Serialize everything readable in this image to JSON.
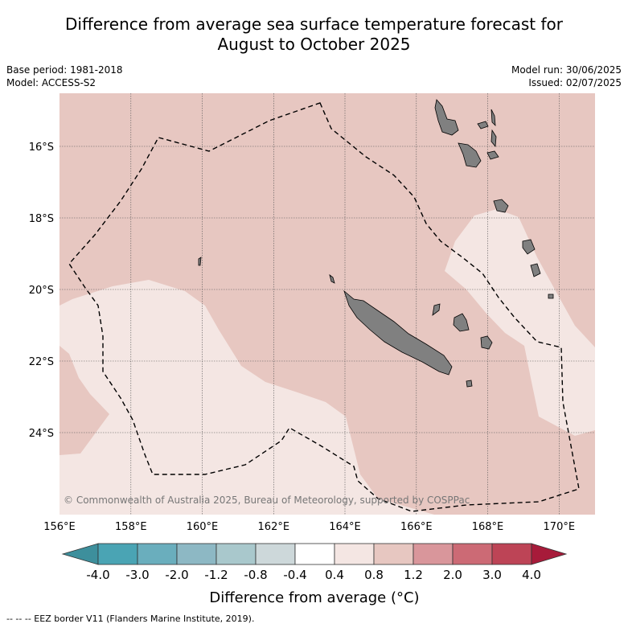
{
  "header": {
    "title_line1": "Difference from average sea surface temperature forecast for",
    "title_line2": "August to October 2025",
    "base_period": "Base period: 1981-2018",
    "model": "Model: ACCESS-S2",
    "model_run": "Model run: 30/06/2025",
    "issued": "Issued: 02/07/2025"
  },
  "map": {
    "lon_labels": [
      "156°E",
      "158°E",
      "160°E",
      "162°E",
      "164°E",
      "166°E",
      "168°E",
      "170°E"
    ],
    "lat_labels": [
      "16°S",
      "18°S",
      "20°S",
      "22°S",
      "24°S"
    ],
    "copyright": "© Commonwealth of Australia 2025, Bureau of Meteorology, supported by COSPPac",
    "colors": {
      "ocean_warm": "#e7c7c1",
      "ocean_light": "#f4e6e3",
      "land": "#808080",
      "gridline": "#555555"
    }
  },
  "colorbar": {
    "tick_labels": [
      "-4.0",
      "-3.0",
      "-2.0",
      "-1.2",
      "-0.8",
      "-0.4",
      "0.4",
      "0.8",
      "1.2",
      "2.0",
      "3.0",
      "4.0"
    ],
    "bin_colors": [
      "#3d8f9c",
      "#4aa4b4",
      "#6aaebd",
      "#8db8c4",
      "#a9c8cc",
      "#cdd8da",
      "#ffffff",
      "#f4e6e3",
      "#e7c7c1",
      "#d9969b",
      "#cc6a75",
      "#bd4456",
      "#a71b3a"
    ],
    "label": "Difference from average (°C)"
  },
  "footer": {
    "legend_text": "-- -- -- EEZ border V11 (Flanders Marine Institute, 2019)."
  }
}
